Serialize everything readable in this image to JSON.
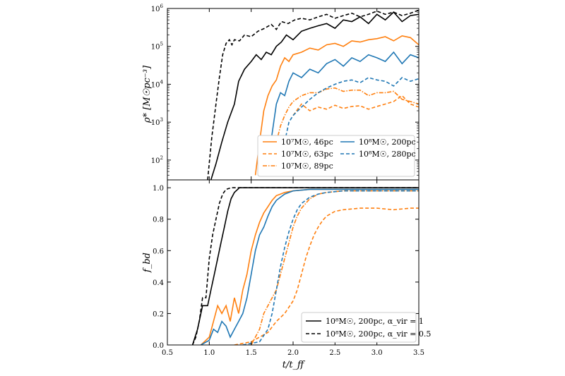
{
  "colors": {
    "orange": "#ff7f0e",
    "blue": "#1f77b4",
    "black": "#000000"
  },
  "chart_data": [
    {
      "type": "line",
      "ylabel": "ρ* [M☉pc⁻³]",
      "yscale": "log",
      "xlim": [
        0.5,
        3.5
      ],
      "ylim": [
        30,
        1000000
      ],
      "y_ticks": [
        {
          "value": 100,
          "base": "10",
          "exp": "2"
        },
        {
          "value": 1000,
          "base": "10",
          "exp": "3"
        },
        {
          "value": 10000,
          "base": "10",
          "exp": "4"
        },
        {
          "value": 100000,
          "base": "10",
          "exp": "5"
        },
        {
          "value": 1000000,
          "base": "10",
          "exp": "6"
        }
      ],
      "legend_position": "lower-right",
      "legend": [
        {
          "label": "10⁷M☉, 46pc",
          "color": "#ff7f0e",
          "dash": "solid"
        },
        {
          "label": "10⁷M☉, 63pc",
          "color": "#ff7f0e",
          "dash": "dashed"
        },
        {
          "label": "10⁷M☉, 89pc",
          "color": "#ff7f0e",
          "dash": "dashdot"
        },
        {
          "label": "10⁸M☉, 200pc",
          "color": "#1f77b4",
          "dash": "solid"
        },
        {
          "label": "10⁸M☉, 280pc",
          "color": "#1f77b4",
          "dash": "dashed"
        }
      ],
      "series": [
        {
          "color": "#000000",
          "dash": "dashed",
          "x": [
            0.98,
            1.03,
            1.08,
            1.12,
            1.16,
            1.2,
            1.24,
            1.27,
            1.3,
            1.36,
            1.42,
            1.5,
            1.58,
            1.66,
            1.74,
            1.8,
            1.86,
            1.94,
            2.02,
            2.1,
            2.2,
            2.3,
            2.4,
            2.5,
            2.6,
            2.7,
            2.8,
            2.9,
            3.0,
            3.1,
            3.2,
            3.3,
            3.4,
            3.5
          ],
          "y": [
            30,
            400,
            3000,
            15000,
            60000,
            120000,
            150000,
            110000,
            150000,
            140000,
            200000,
            180000,
            250000,
            300000,
            380000,
            280000,
            450000,
            400000,
            500000,
            550000,
            500000,
            600000,
            700000,
            550000,
            650000,
            750000,
            600000,
            700000,
            850000,
            700000,
            800000,
            650000,
            750000,
            900000
          ]
        },
        {
          "color": "#000000",
          "dash": "solid",
          "x": [
            1.02,
            1.08,
            1.15,
            1.22,
            1.3,
            1.35,
            1.42,
            1.5,
            1.56,
            1.62,
            1.68,
            1.74,
            1.8,
            1.86,
            1.92,
            2.0,
            2.1,
            2.2,
            2.3,
            2.4,
            2.5,
            2.6,
            2.7,
            2.8,
            2.9,
            3.0,
            3.1,
            3.2,
            3.3,
            3.4,
            3.5
          ],
          "y": [
            30,
            80,
            300,
            1000,
            3000,
            12000,
            25000,
            40000,
            60000,
            45000,
            70000,
            60000,
            100000,
            130000,
            200000,
            150000,
            250000,
            300000,
            350000,
            400000,
            300000,
            500000,
            450000,
            600000,
            400000,
            700000,
            500000,
            800000,
            450000,
            650000,
            700000
          ]
        },
        {
          "color": "#ff7f0e",
          "dash": "solid",
          "x": [
            1.55,
            1.6,
            1.65,
            1.7,
            1.75,
            1.8,
            1.85,
            1.9,
            1.95,
            2.0,
            2.1,
            2.2,
            2.3,
            2.4,
            2.5,
            2.6,
            2.7,
            2.8,
            2.9,
            3.0,
            3.1,
            3.2,
            3.3,
            3.4,
            3.5
          ],
          "y": [
            40,
            300,
            2000,
            5000,
            9000,
            13000,
            30000,
            50000,
            40000,
            60000,
            70000,
            90000,
            80000,
            110000,
            120000,
            100000,
            140000,
            130000,
            150000,
            160000,
            180000,
            140000,
            190000,
            170000,
            110000
          ]
        },
        {
          "color": "#ff7f0e",
          "dash": "dashed",
          "x": [
            2.0,
            2.1,
            2.2,
            2.3,
            2.4,
            2.5,
            2.6,
            2.7,
            2.8,
            2.9,
            3.0,
            3.1,
            3.2,
            3.3,
            3.4,
            3.5
          ],
          "y": [
            1500,
            3000,
            2000,
            2500,
            2200,
            2800,
            2300,
            2600,
            2700,
            2200,
            2600,
            3000,
            3500,
            5000,
            3000,
            2500
          ]
        },
        {
          "color": "#ff7f0e",
          "dash": "dashdot",
          "x": [
            1.7,
            1.75,
            1.8,
            1.85,
            1.9,
            1.95,
            2.0,
            2.1,
            2.2,
            2.3,
            2.4,
            2.5,
            2.6,
            2.7,
            2.8,
            2.9,
            3.0,
            3.1,
            3.2,
            3.3,
            3.4,
            3.5
          ],
          "y": [
            40,
            100,
            300,
            800,
            1500,
            2500,
            3500,
            5000,
            6000,
            6000,
            7500,
            8000,
            6500,
            7000,
            7000,
            5000,
            6000,
            6000,
            6500,
            4000,
            3500,
            3000
          ]
        },
        {
          "color": "#1f77b4",
          "dash": "solid",
          "x": [
            1.7,
            1.75,
            1.8,
            1.85,
            1.9,
            1.95,
            2.0,
            2.1,
            2.2,
            2.3,
            2.4,
            2.5,
            2.6,
            2.7,
            2.8,
            2.9,
            3.0,
            3.1,
            3.2,
            3.3,
            3.4,
            3.5
          ],
          "y": [
            100,
            500,
            3000,
            6000,
            5000,
            12000,
            20000,
            15000,
            25000,
            20000,
            35000,
            45000,
            30000,
            50000,
            40000,
            60000,
            50000,
            40000,
            70000,
            35000,
            60000,
            50000
          ]
        },
        {
          "color": "#1f77b4",
          "dash": "dashed",
          "x": [
            1.9,
            1.95,
            2.0,
            2.1,
            2.2,
            2.3,
            2.4,
            2.5,
            2.6,
            2.7,
            2.8,
            2.9,
            3.0,
            3.1,
            3.2,
            3.3,
            3.4,
            3.5
          ],
          "y": [
            300,
            1000,
            1500,
            2500,
            4000,
            6000,
            8000,
            10000,
            12000,
            13000,
            11000,
            15000,
            13000,
            12000,
            9000,
            15000,
            12000,
            14000
          ]
        }
      ]
    },
    {
      "type": "line",
      "xlabel": "t/t_ff",
      "ylabel": "f_bd",
      "xlim": [
        0.5,
        3.5
      ],
      "ylim": [
        0.0,
        1.05
      ],
      "x_ticks": [
        "0.5",
        "1.0",
        "1.5",
        "2.0",
        "2.5",
        "3.0",
        "3.5"
      ],
      "y_ticks": [
        "0.0",
        "0.2",
        "0.4",
        "0.6",
        "0.8",
        "1.0"
      ],
      "legend_position": "lower-right",
      "legend": [
        {
          "label": "10⁸M☉, 200pc, α_vir = 1",
          "color": "#000000",
          "dash": "solid"
        },
        {
          "label": "10⁸M☉, 200pc, α_vir = 0.5",
          "color": "#000000",
          "dash": "dashed"
        }
      ],
      "series": [
        {
          "color": "#000000",
          "dash": "dashed",
          "x": [
            0.8,
            0.84,
            0.88,
            0.92,
            0.96,
            1.0,
            1.04,
            1.08,
            1.12,
            1.16,
            1.2,
            1.26,
            1.32,
            1.4,
            1.6,
            2.0,
            3.5
          ],
          "y": [
            0.0,
            0.05,
            0.15,
            0.3,
            0.3,
            0.55,
            0.7,
            0.8,
            0.9,
            0.96,
            0.99,
            1.0,
            1.0,
            1.0,
            1.0,
            1.0,
            1.0
          ]
        },
        {
          "color": "#000000",
          "dash": "solid",
          "x": [
            0.8,
            0.86,
            0.92,
            0.98,
            1.02,
            1.06,
            1.1,
            1.14,
            1.18,
            1.22,
            1.26,
            1.3,
            1.36,
            1.42,
            1.6,
            2.0,
            3.5
          ],
          "y": [
            0.0,
            0.1,
            0.25,
            0.25,
            0.35,
            0.45,
            0.55,
            0.65,
            0.75,
            0.85,
            0.93,
            0.97,
            1.0,
            1.0,
            1.0,
            1.0,
            1.0
          ]
        },
        {
          "color": "#ff7f0e",
          "dash": "solid",
          "x": [
            0.9,
            1.0,
            1.05,
            1.1,
            1.15,
            1.2,
            1.25,
            1.3,
            1.35,
            1.4,
            1.45,
            1.5,
            1.55,
            1.6,
            1.65,
            1.7,
            1.75,
            1.8,
            1.85,
            1.9,
            2.0,
            2.2,
            2.5,
            3.0,
            3.5
          ],
          "y": [
            0.0,
            0.05,
            0.15,
            0.25,
            0.2,
            0.25,
            0.15,
            0.3,
            0.2,
            0.35,
            0.45,
            0.6,
            0.7,
            0.78,
            0.84,
            0.88,
            0.92,
            0.95,
            0.96,
            0.97,
            0.98,
            0.99,
            0.99,
            0.99,
            0.99
          ]
        },
        {
          "color": "#1f77b4",
          "dash": "solid",
          "x": [
            0.9,
            1.0,
            1.05,
            1.1,
            1.15,
            1.2,
            1.25,
            1.3,
            1.35,
            1.4,
            1.45,
            1.5,
            1.55,
            1.6,
            1.65,
            1.7,
            1.75,
            1.8,
            1.85,
            1.9,
            2.0,
            2.2,
            2.5,
            3.0,
            3.5
          ],
          "y": [
            0.0,
            0.03,
            0.1,
            0.08,
            0.15,
            0.12,
            0.05,
            0.1,
            0.15,
            0.2,
            0.3,
            0.45,
            0.6,
            0.7,
            0.75,
            0.82,
            0.88,
            0.92,
            0.94,
            0.96,
            0.98,
            0.99,
            0.99,
            0.99,
            0.99
          ]
        },
        {
          "color": "#ff7f0e",
          "dash": "dashed",
          "x": [
            1.3,
            1.5,
            1.7,
            1.8,
            1.9,
            2.0,
            2.05,
            2.1,
            2.15,
            2.2,
            2.25,
            2.3,
            2.35,
            2.4,
            2.5,
            2.6,
            2.8,
            3.0,
            3.2,
            3.4,
            3.5
          ],
          "y": [
            0.0,
            0.02,
            0.08,
            0.15,
            0.2,
            0.28,
            0.35,
            0.45,
            0.55,
            0.63,
            0.7,
            0.75,
            0.79,
            0.82,
            0.85,
            0.86,
            0.87,
            0.87,
            0.86,
            0.87,
            0.87
          ]
        },
        {
          "color": "#ff7f0e",
          "dash": "dashdot",
          "x": [
            1.5,
            1.6,
            1.65,
            1.7,
            1.75,
            1.8,
            1.85,
            1.9,
            1.95,
            2.0,
            2.05,
            2.1,
            2.15,
            2.2,
            2.3,
            2.4,
            2.6,
            3.0,
            3.5
          ],
          "y": [
            0.0,
            0.1,
            0.2,
            0.25,
            0.3,
            0.35,
            0.45,
            0.55,
            0.65,
            0.75,
            0.82,
            0.87,
            0.9,
            0.93,
            0.96,
            0.97,
            0.98,
            0.98,
            0.98
          ]
        },
        {
          "color": "#1f77b4",
          "dash": "dashed",
          "x": [
            1.4,
            1.6,
            1.7,
            1.75,
            1.8,
            1.85,
            1.9,
            1.95,
            2.0,
            2.05,
            2.1,
            2.2,
            2.3,
            2.4,
            2.6,
            3.0,
            3.5
          ],
          "y": [
            0.0,
            0.02,
            0.1,
            0.2,
            0.35,
            0.5,
            0.62,
            0.72,
            0.8,
            0.86,
            0.9,
            0.94,
            0.96,
            0.97,
            0.98,
            0.98,
            0.98
          ]
        }
      ]
    }
  ]
}
